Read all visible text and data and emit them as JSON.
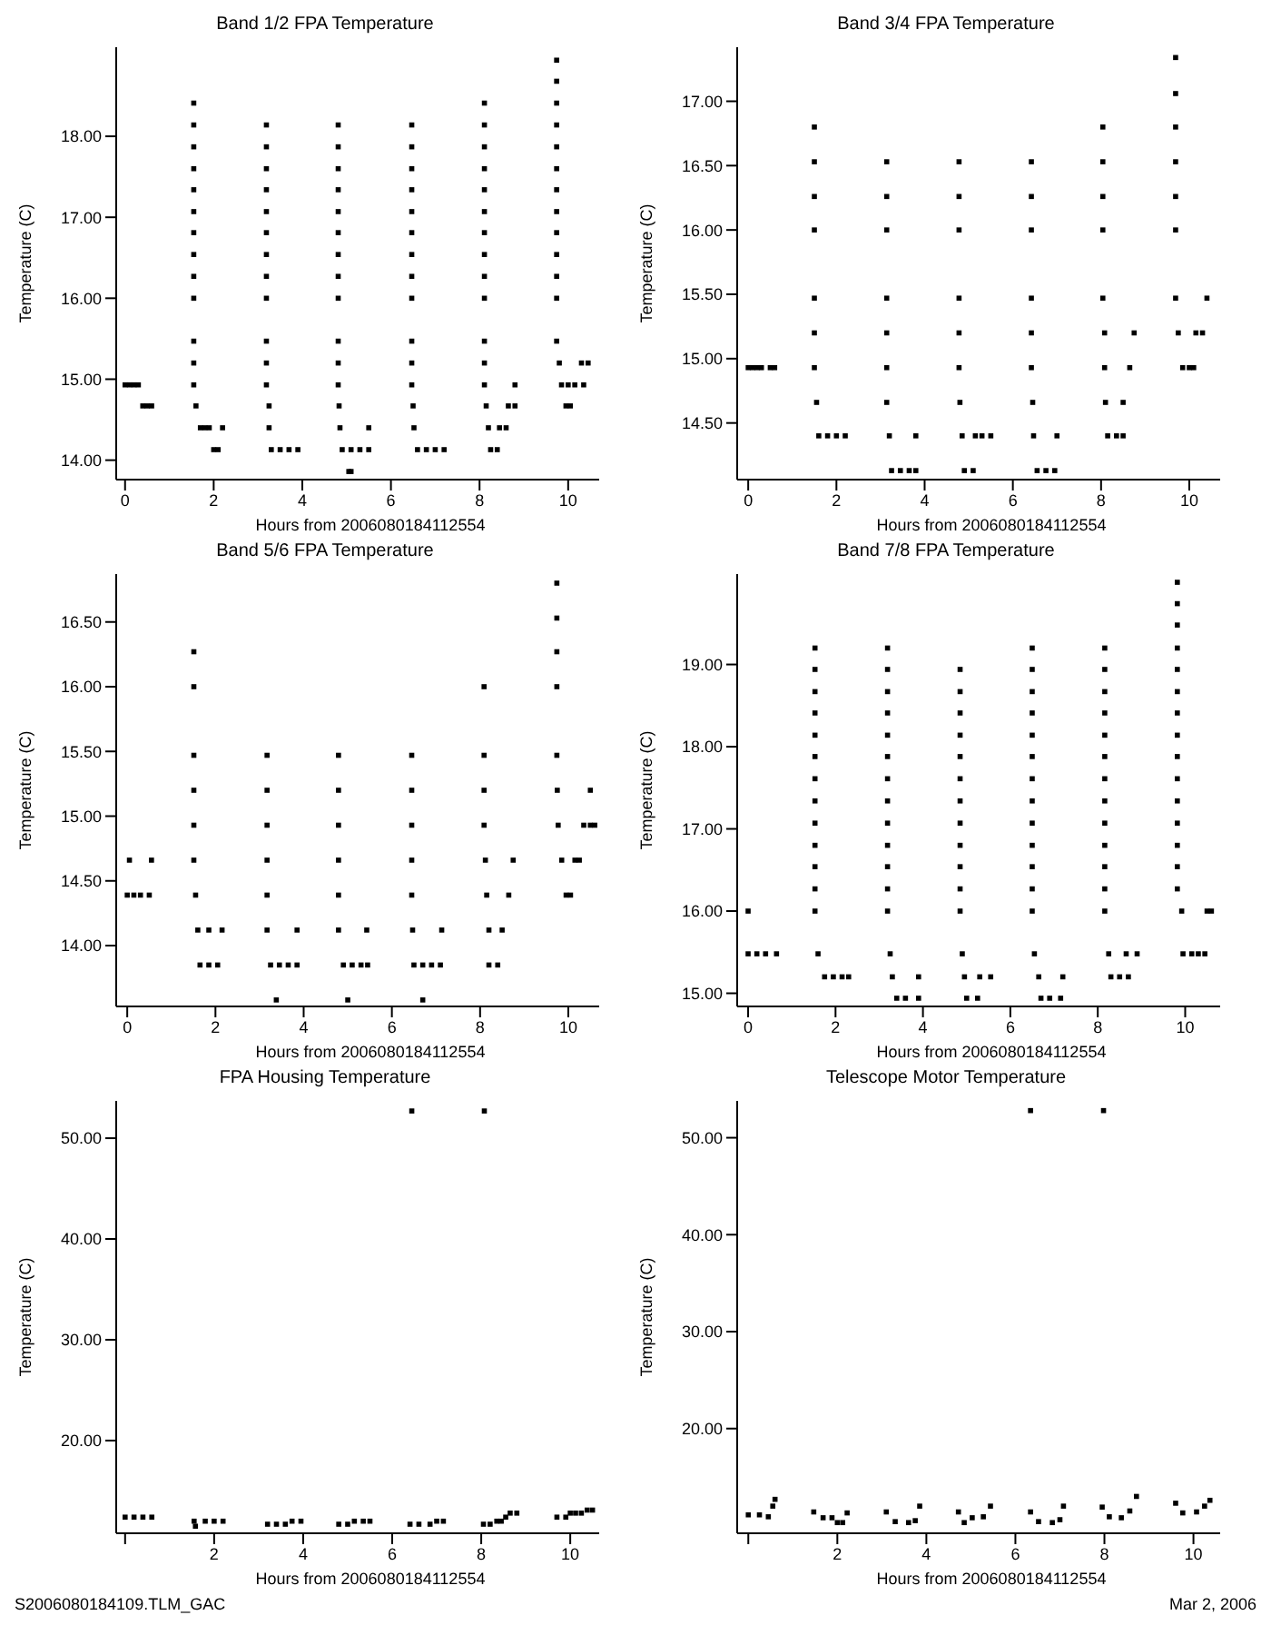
{
  "chart_data": [
    {
      "type": "scatter",
      "title": "Band 1/2 FPA Temperature",
      "xlabel": "Hours from 2006080184112554",
      "ylabel": "Temperature (C)",
      "color": "#000000",
      "marker": "square",
      "xlim": [
        -0.2,
        10.7
      ],
      "ylim": [
        13.76,
        19.1
      ],
      "xticks": [
        0,
        2,
        4,
        6,
        8,
        10
      ],
      "yticks": [
        {
          "value": 14,
          "label": "14.00"
        },
        {
          "value": 15,
          "label": "15.00"
        },
        {
          "value": 16,
          "label": "16.00"
        },
        {
          "value": 17,
          "label": "17.00"
        },
        {
          "value": 18,
          "label": "18.00"
        }
      ],
      "x": [
        0,
        0.1,
        0.2,
        0.3,
        0.4,
        0.5,
        0.6,
        1.55,
        1.55,
        1.55,
        1.55,
        1.55,
        1.55,
        1.55,
        1.55,
        1.55,
        1.55,
        1.55,
        1.55,
        1.55,
        1.6,
        1.7,
        1.8,
        1.9,
        2.0,
        2.1,
        2.2,
        3.19,
        3.19,
        3.19,
        3.19,
        3.19,
        3.19,
        3.19,
        3.19,
        3.19,
        3.19,
        3.19,
        3.19,
        3.25,
        3.25,
        3.3,
        3.5,
        3.7,
        3.9,
        4.81,
        4.81,
        4.81,
        4.81,
        4.81,
        4.81,
        4.81,
        4.81,
        4.81,
        4.81,
        4.81,
        4.81,
        4.83,
        4.85,
        5.5,
        4.9,
        5.1,
        5.3,
        5.5,
        5.05,
        5.1,
        6.47,
        6.47,
        6.47,
        6.47,
        6.47,
        6.47,
        6.47,
        6.47,
        6.47,
        6.47,
        6.47,
        6.47,
        6.5,
        6.52,
        6.6,
        6.8,
        7.0,
        7.2,
        8.11,
        8.11,
        8.11,
        8.11,
        8.11,
        8.11,
        8.11,
        8.11,
        8.11,
        8.11,
        8.11,
        8.11,
        8.11,
        8.15,
        8.2,
        8.25,
        8.4,
        8.45,
        8.6,
        8.65,
        8.8,
        8.8,
        9.74,
        9.74,
        9.74,
        9.74,
        9.74,
        9.74,
        9.74,
        9.74,
        9.74,
        9.74,
        9.74,
        9.74,
        9.74,
        9.8,
        9.85,
        10.0,
        10.15,
        10.35,
        9.95,
        10.05,
        10.3,
        10.45
      ],
      "values": [
        14.93,
        14.93,
        14.93,
        14.93,
        14.67,
        14.67,
        14.67,
        18.41,
        18.14,
        17.87,
        17.6,
        17.34,
        17.07,
        16.81,
        16.54,
        16.27,
        16.0,
        15.47,
        15.2,
        14.93,
        14.67,
        14.4,
        14.4,
        14.4,
        14.13,
        14.13,
        14.4,
        18.14,
        17.87,
        17.6,
        17.34,
        17.07,
        16.81,
        16.54,
        16.27,
        16.0,
        15.47,
        15.2,
        14.93,
        14.67,
        14.4,
        14.13,
        14.13,
        14.13,
        14.13,
        18.14,
        17.87,
        17.6,
        17.34,
        17.07,
        16.81,
        16.54,
        16.27,
        16.0,
        15.47,
        15.2,
        14.93,
        14.67,
        14.4,
        14.4,
        14.13,
        14.13,
        14.13,
        14.13,
        13.86,
        13.86,
        18.14,
        17.87,
        17.6,
        17.34,
        17.07,
        16.81,
        16.54,
        16.27,
        16.0,
        15.47,
        15.2,
        14.93,
        14.67,
        14.4,
        14.13,
        14.13,
        14.13,
        14.13,
        18.41,
        18.14,
        17.87,
        17.6,
        17.34,
        17.07,
        16.81,
        16.54,
        16.27,
        16.0,
        15.47,
        15.2,
        14.93,
        14.67,
        14.4,
        14.13,
        14.13,
        14.4,
        14.4,
        14.67,
        14.67,
        14.93,
        18.94,
        18.68,
        18.41,
        18.14,
        17.87,
        17.6,
        17.34,
        17.07,
        16.81,
        16.54,
        16.27,
        16.0,
        15.47,
        15.2,
        14.93,
        14.93,
        14.93,
        14.93,
        14.67,
        14.67,
        15.2,
        15.2
      ]
    },
    {
      "type": "scatter",
      "title": "Band 3/4 FPA Temperature",
      "xlabel": "Hours from 2006080184112554",
      "ylabel": "Temperature (C)",
      "color": "#000000",
      "marker": "square",
      "xlim": [
        -0.25,
        10.7
      ],
      "ylim": [
        14.06,
        17.42
      ],
      "xticks": [
        0,
        2,
        4,
        6,
        8,
        10
      ],
      "yticks": [
        {
          "value": 14.5,
          "label": "14.50"
        },
        {
          "value": 15,
          "label": "15.00"
        },
        {
          "value": 15.5,
          "label": "15.50"
        },
        {
          "value": 16,
          "label": "16.00"
        },
        {
          "value": 16.5,
          "label": "16.50"
        },
        {
          "value": 17,
          "label": "17.00"
        }
      ],
      "x": [
        0,
        0.1,
        0.2,
        0.3,
        0.5,
        0.6,
        1.5,
        1.5,
        1.5,
        1.5,
        1.5,
        1.5,
        1.5,
        1.55,
        1.6,
        1.8,
        2.0,
        2.2,
        3.14,
        3.14,
        3.14,
        3.14,
        3.14,
        3.14,
        3.14,
        3.2,
        3.8,
        3.25,
        3.45,
        3.65,
        3.8,
        4.78,
        4.78,
        4.78,
        4.78,
        4.78,
        4.78,
        4.8,
        4.85,
        5.15,
        5.3,
        5.5,
        4.9,
        5.1,
        6.42,
        6.42,
        6.42,
        6.42,
        6.42,
        6.42,
        6.45,
        6.47,
        7.0,
        6.55,
        6.75,
        6.95,
        8.04,
        8.04,
        8.04,
        8.04,
        8.04,
        8.08,
        8.08,
        8.1,
        8.15,
        8.35,
        8.5,
        8.5,
        8.65,
        8.75,
        9.69,
        9.69,
        9.69,
        9.69,
        9.69,
        9.69,
        9.69,
        9.75,
        9.85,
        10.0,
        10.1,
        10.15,
        10.3,
        10.4
      ],
      "values": [
        14.93,
        14.93,
        14.93,
        14.93,
        14.93,
        14.93,
        16.8,
        16.53,
        16.26,
        16.0,
        15.47,
        15.2,
        14.93,
        14.66,
        14.4,
        14.4,
        14.4,
        14.4,
        16.53,
        16.26,
        16.0,
        15.47,
        15.2,
        14.93,
        14.66,
        14.4,
        14.4,
        14.13,
        14.13,
        14.13,
        14.13,
        16.53,
        16.26,
        16.0,
        15.47,
        15.2,
        14.93,
        14.66,
        14.4,
        14.4,
        14.4,
        14.4,
        14.13,
        14.13,
        16.53,
        16.26,
        16.0,
        15.47,
        15.2,
        14.93,
        14.66,
        14.4,
        14.4,
        14.13,
        14.13,
        14.13,
        16.8,
        16.53,
        16.26,
        16.0,
        15.47,
        15.2,
        14.93,
        14.66,
        14.4,
        14.4,
        14.4,
        14.66,
        14.93,
        15.2,
        17.34,
        17.06,
        16.8,
        16.53,
        16.26,
        16.0,
        15.47,
        15.2,
        14.93,
        14.93,
        14.93,
        15.2,
        15.2,
        15.47
      ]
    },
    {
      "type": "scatter",
      "title": "Band 5/6 FPA Temperature",
      "xlabel": "Hours from 2006080184112554",
      "ylabel": "Temperature (C)",
      "color": "#000000",
      "marker": "square",
      "xlim": [
        -0.25,
        10.7
      ],
      "ylim": [
        13.53,
        16.87
      ],
      "xticks": [
        0,
        2,
        4,
        6,
        8,
        10
      ],
      "yticks": [
        {
          "value": 14,
          "label": "14.00"
        },
        {
          "value": 14.5,
          "label": "14.50"
        },
        {
          "value": 15,
          "label": "15.00"
        },
        {
          "value": 15.5,
          "label": "15.50"
        },
        {
          "value": 16,
          "label": "16.00"
        },
        {
          "value": 16.5,
          "label": "16.50"
        }
      ],
      "x": [
        0.05,
        0.55,
        0,
        0.15,
        0.3,
        0.5,
        1.51,
        1.51,
        1.51,
        1.51,
        1.51,
        1.51,
        1.55,
        1.6,
        1.85,
        2.15,
        1.65,
        1.85,
        2.05,
        3.17,
        3.17,
        3.17,
        3.17,
        3.17,
        3.17,
        3.85,
        3.25,
        3.45,
        3.65,
        3.85,
        3.38,
        4.79,
        4.79,
        4.79,
        4.79,
        4.79,
        4.79,
        5.43,
        4.9,
        5.1,
        5.3,
        5.45,
        5.0,
        6.45,
        6.45,
        6.45,
        6.45,
        6.45,
        6.47,
        7.13,
        6.5,
        6.7,
        6.9,
        7.1,
        6.7,
        8.09,
        8.09,
        8.09,
        8.09,
        8.12,
        8.15,
        8.2,
        8.5,
        8.2,
        8.4,
        8.65,
        8.75,
        9.74,
        9.74,
        9.74,
        9.74,
        9.74,
        9.75,
        9.77,
        9.85,
        9.95,
        10.05,
        10.15,
        10.25,
        10.35,
        10.5,
        10.6,
        10.5
      ],
      "values": [
        14.66,
        14.66,
        14.39,
        14.39,
        14.39,
        14.39,
        16.27,
        16.0,
        15.47,
        15.2,
        14.93,
        14.66,
        14.39,
        14.12,
        14.12,
        14.12,
        13.85,
        13.85,
        13.85,
        15.47,
        15.2,
        14.93,
        14.66,
        14.39,
        14.12,
        14.12,
        13.85,
        13.85,
        13.85,
        13.85,
        13.58,
        15.47,
        15.2,
        14.93,
        14.66,
        14.39,
        14.12,
        14.12,
        13.85,
        13.85,
        13.85,
        13.85,
        13.58,
        15.47,
        15.2,
        14.93,
        14.66,
        14.39,
        14.12,
        14.12,
        13.85,
        13.85,
        13.85,
        13.85,
        13.58,
        16.0,
        15.47,
        15.2,
        14.93,
        14.66,
        14.39,
        14.12,
        14.12,
        13.85,
        13.85,
        14.39,
        14.66,
        16.8,
        16.53,
        16.27,
        16.0,
        15.47,
        15.2,
        14.93,
        14.66,
        14.39,
        14.39,
        14.66,
        14.66,
        14.93,
        14.93,
        14.93,
        15.2
      ]
    },
    {
      "type": "scatter",
      "title": "Band 7/8 FPA Temperature",
      "xlabel": "Hours from 2006080184112554",
      "ylabel": "Temperature (C)",
      "color": "#000000",
      "marker": "square",
      "xlim": [
        -0.25,
        10.8
      ],
      "ylim": [
        14.84,
        20.1
      ],
      "xticks": [
        0,
        2,
        4,
        6,
        8,
        10
      ],
      "yticks": [
        {
          "value": 15,
          "label": "15.00"
        },
        {
          "value": 16,
          "label": "16.00"
        },
        {
          "value": 17,
          "label": "17.00"
        },
        {
          "value": 18,
          "label": "18.00"
        },
        {
          "value": 19,
          "label": "19.00"
        }
      ],
      "x": [
        0,
        0,
        0.2,
        0.4,
        0.65,
        1.53,
        1.53,
        1.53,
        1.53,
        1.53,
        1.53,
        1.53,
        1.53,
        1.53,
        1.53,
        1.53,
        1.53,
        1.53,
        1.6,
        1.75,
        1.95,
        2.15,
        2.3,
        3.19,
        3.19,
        3.19,
        3.19,
        3.19,
        3.19,
        3.19,
        3.19,
        3.19,
        3.19,
        3.19,
        3.19,
        3.19,
        3.25,
        3.3,
        3.9,
        3.4,
        3.6,
        3.9,
        4.85,
        4.85,
        4.85,
        4.85,
        4.85,
        4.85,
        4.85,
        4.85,
        4.85,
        4.85,
        4.85,
        4.85,
        4.9,
        4.95,
        5.3,
        5.55,
        5.0,
        5.25,
        6.5,
        6.5,
        6.5,
        6.5,
        6.5,
        6.5,
        6.5,
        6.5,
        6.5,
        6.5,
        6.5,
        6.5,
        6.5,
        6.55,
        6.65,
        7.2,
        6.7,
        6.9,
        7.15,
        8.16,
        8.16,
        8.16,
        8.16,
        8.16,
        8.16,
        8.16,
        8.16,
        8.16,
        8.16,
        8.16,
        8.16,
        8.16,
        8.25,
        8.3,
        8.5,
        8.7,
        8.65,
        8.9,
        9.82,
        9.82,
        9.82,
        9.82,
        9.82,
        9.82,
        9.82,
        9.82,
        9.82,
        9.82,
        9.82,
        9.82,
        9.82,
        9.82,
        9.82,
        9.92,
        9.95,
        10.15,
        10.3,
        10.45,
        10.5,
        10.6
      ],
      "values": [
        16.0,
        15.48,
        15.48,
        15.48,
        15.48,
        19.2,
        18.94,
        18.67,
        18.41,
        18.14,
        17.88,
        17.61,
        17.34,
        17.07,
        16.8,
        16.54,
        16.27,
        16.0,
        15.48,
        15.2,
        15.2,
        15.2,
        15.2,
        19.2,
        18.94,
        18.67,
        18.41,
        18.14,
        17.88,
        17.61,
        17.34,
        17.07,
        16.8,
        16.54,
        16.27,
        16.0,
        15.48,
        15.2,
        15.2,
        14.94,
        14.94,
        14.94,
        18.94,
        18.67,
        18.41,
        18.14,
        17.88,
        17.61,
        17.34,
        17.07,
        16.8,
        16.54,
        16.27,
        16.0,
        15.48,
        15.2,
        15.2,
        15.2,
        14.94,
        14.94,
        19.2,
        18.94,
        18.67,
        18.41,
        18.14,
        17.88,
        17.61,
        17.34,
        17.07,
        16.8,
        16.54,
        16.27,
        16.0,
        15.48,
        15.2,
        15.2,
        14.94,
        14.94,
        14.94,
        19.2,
        18.94,
        18.67,
        18.41,
        18.14,
        17.88,
        17.61,
        17.34,
        17.07,
        16.8,
        16.54,
        16.27,
        16.0,
        15.48,
        15.2,
        15.2,
        15.2,
        15.48,
        15.48,
        20.0,
        19.74,
        19.48,
        19.2,
        18.94,
        18.67,
        18.41,
        18.14,
        17.88,
        17.61,
        17.34,
        17.07,
        16.8,
        16.54,
        16.27,
        16.0,
        15.48,
        15.48,
        15.48,
        15.48,
        16.0,
        16.0
      ]
    },
    {
      "type": "scatter",
      "title": "FPA Housing Temperature",
      "xlabel": "Hours from 2006080184112554",
      "ylabel": "Temperature (C)",
      "color": "#000000",
      "marker": "square",
      "xlim": [
        -0.2,
        10.65
      ],
      "ylim": [
        10.8,
        53.7
      ],
      "xticks": [
        {
          "value": 0,
          "label": null
        },
        2,
        4,
        6,
        8,
        10
      ],
      "yticks": [
        {
          "value": 20,
          "label": "20.00"
        },
        {
          "value": 30,
          "label": "30.00"
        },
        {
          "value": 40,
          "label": "40.00"
        },
        {
          "value": 50,
          "label": "50.00"
        }
      ],
      "annotations": [
        "S2006080184109.TLM_GAC"
      ],
      "x": [
        0,
        0.2,
        0.4,
        0.6,
        1.58,
        1.55,
        1.8,
        2.0,
        2.2,
        3.2,
        3.4,
        3.6,
        3.75,
        3.95,
        4.8,
        5.0,
        5.15,
        5.35,
        5.5,
        6.4,
        6.6,
        6.85,
        7.0,
        7.15,
        6.44,
        8.07,
        8.05,
        8.2,
        8.35,
        8.45,
        8.55,
        8.65,
        8.8,
        9.7,
        9.9,
        10.0,
        10.12,
        10.25,
        10.38,
        10.5
      ],
      "values": [
        12.4,
        12.4,
        12.4,
        12.4,
        11.5,
        12.0,
        12.0,
        12.0,
        12.0,
        11.7,
        11.7,
        11.7,
        12.0,
        12.0,
        11.7,
        11.7,
        12.0,
        12.0,
        12.0,
        11.7,
        11.7,
        11.7,
        12.0,
        12.0,
        52.7,
        52.7,
        11.7,
        11.7,
        12.0,
        12.0,
        12.4,
        12.8,
        12.8,
        12.4,
        12.4,
        12.8,
        12.8,
        12.8,
        13.1,
        13.1
      ]
    },
    {
      "type": "scatter",
      "title": "Telescope Motor Temperature",
      "xlabel": "Hours from 2006080184112554",
      "ylabel": "Temperature (C)",
      "color": "#000000",
      "marker": "square",
      "xlim": [
        -0.25,
        10.6
      ],
      "ylim": [
        9.2,
        53.8
      ],
      "xticks": [
        {
          "value": 0,
          "label": null
        },
        2,
        4,
        6,
        8,
        10
      ],
      "yticks": [
        {
          "value": 20,
          "label": "20.00"
        },
        {
          "value": 30,
          "label": "30.00"
        },
        {
          "value": 40,
          "label": "40.00"
        },
        {
          "value": 50,
          "label": "50.00"
        }
      ],
      "annotations": [
        "Mar 2, 2006"
      ],
      "x": [
        0,
        0.25,
        0.45,
        0.55,
        0.6,
        1.47,
        1.68,
        1.88,
        2.0,
        2.12,
        2.22,
        3.1,
        3.3,
        3.6,
        3.75,
        3.85,
        4.72,
        4.85,
        5.03,
        5.28,
        5.44,
        6.34,
        6.52,
        6.83,
        7.0,
        7.08,
        6.34,
        7.98,
        7.95,
        8.11,
        8.38,
        8.57,
        8.72,
        9.6,
        9.76,
        10.07,
        10.25,
        10.37
      ],
      "values": [
        11.1,
        11.1,
        10.9,
        12.0,
        12.7,
        11.4,
        10.8,
        10.8,
        10.3,
        10.3,
        11.3,
        11.4,
        10.4,
        10.3,
        10.5,
        12.0,
        11.4,
        10.3,
        10.8,
        10.9,
        12.0,
        11.4,
        10.4,
        10.3,
        10.6,
        12.0,
        52.8,
        52.8,
        11.9,
        10.9,
        10.8,
        11.5,
        13.0,
        12.3,
        11.3,
        11.4,
        12.0,
        12.6
      ]
    }
  ]
}
